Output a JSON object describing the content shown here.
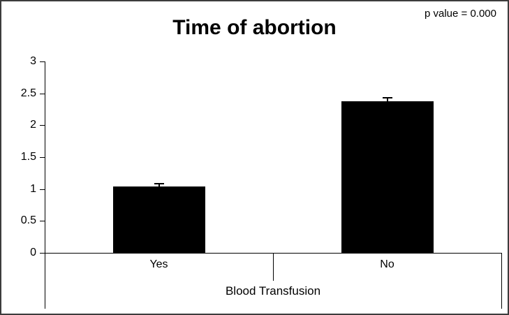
{
  "window": {
    "background": "#ffffff",
    "border_color": "#3c3c3c"
  },
  "header": {
    "title": "Time of abortion",
    "annotation": "p value = 0.000"
  },
  "chart_data": {
    "type": "bar",
    "title": "Time of abortion",
    "annotation": "p value = 0.000",
    "categories": [
      "Yes",
      "No"
    ],
    "values": [
      1.04,
      2.38
    ],
    "errors_plus": [
      0.06,
      0.06
    ],
    "xlabel": "Blood Transfusion",
    "ylabel": "",
    "ylim": [
      0,
      3
    ],
    "yticks": [
      0,
      0.5,
      1,
      1.5,
      2,
      2.5,
      3
    ],
    "grid": false,
    "legend": null,
    "bar_color": "#000000",
    "axis_color": "#000000",
    "text_color": "#000000"
  }
}
